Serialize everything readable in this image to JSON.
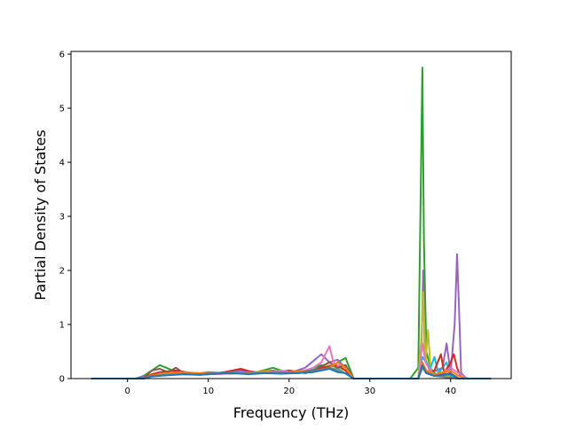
{
  "chart_data": {
    "type": "line",
    "title": "",
    "xlabel": "Frequency (THz)",
    "ylabel": "Partial Density of States",
    "xlim": [
      -7,
      47.5
    ],
    "ylim": [
      0,
      6.05
    ],
    "xticks": [
      0,
      10,
      20,
      30,
      40
    ],
    "yticks": [
      0,
      1,
      2,
      3,
      4,
      5,
      6
    ],
    "grid": false,
    "legend": "none",
    "series": [
      {
        "color": "#2ca02c",
        "points": [
          [
            -4.5,
            0
          ],
          [
            1,
            0
          ],
          [
            2,
            0.05
          ],
          [
            3,
            0.15
          ],
          [
            4,
            0.25
          ],
          [
            4.8,
            0.2
          ],
          [
            6,
            0.12
          ],
          [
            8,
            0.1
          ],
          [
            10,
            0.08
          ],
          [
            12,
            0.1
          ],
          [
            14,
            0.15
          ],
          [
            16,
            0.12
          ],
          [
            18,
            0.2
          ],
          [
            20,
            0.1
          ],
          [
            22,
            0.15
          ],
          [
            24,
            0.25
          ],
          [
            25,
            0.2
          ],
          [
            26,
            0.3
          ],
          [
            27,
            0.38
          ],
          [
            28,
            0
          ],
          [
            35,
            0
          ],
          [
            36,
            0.2
          ],
          [
            36.3,
            3.5
          ],
          [
            36.5,
            5.75
          ],
          [
            36.7,
            2.5
          ],
          [
            37,
            0.5
          ],
          [
            37.5,
            0.2
          ],
          [
            38,
            0.1
          ],
          [
            39,
            0.05
          ],
          [
            40,
            0.02
          ],
          [
            41,
            0
          ],
          [
            45,
            0
          ]
        ]
      },
      {
        "color": "#9467bd",
        "points": [
          [
            -4.5,
            0
          ],
          [
            1,
            0
          ],
          [
            2,
            0.04
          ],
          [
            4,
            0.08
          ],
          [
            6,
            0.1
          ],
          [
            8,
            0.08
          ],
          [
            10,
            0.12
          ],
          [
            12,
            0.1
          ],
          [
            14,
            0.15
          ],
          [
            16,
            0.12
          ],
          [
            18,
            0.15
          ],
          [
            20,
            0.1
          ],
          [
            22,
            0.2
          ],
          [
            24,
            0.45
          ],
          [
            25,
            0.3
          ],
          [
            26,
            0.35
          ],
          [
            27,
            0.2
          ],
          [
            28,
            0
          ],
          [
            36,
            0
          ],
          [
            36.4,
            0.6
          ],
          [
            36.6,
            2.0
          ],
          [
            36.8,
            0.4
          ],
          [
            37.5,
            0.1
          ],
          [
            39,
            0.2
          ],
          [
            39.5,
            0.65
          ],
          [
            40,
            0.1
          ],
          [
            40.5,
            1.0
          ],
          [
            40.8,
            2.3
          ],
          [
            41.0,
            1.5
          ],
          [
            41.3,
            0.1
          ],
          [
            42,
            0
          ],
          [
            45,
            0
          ]
        ]
      },
      {
        "color": "#bcbd22",
        "points": [
          [
            -4.5,
            0
          ],
          [
            2,
            0
          ],
          [
            3,
            0.06
          ],
          [
            5,
            0.1
          ],
          [
            7,
            0.09
          ],
          [
            9,
            0.07
          ],
          [
            11,
            0.1
          ],
          [
            13,
            0.12
          ],
          [
            15,
            0.1
          ],
          [
            17,
            0.14
          ],
          [
            19,
            0.1
          ],
          [
            21,
            0.12
          ],
          [
            23,
            0.15
          ],
          [
            25,
            0.25
          ],
          [
            26,
            0.2
          ],
          [
            27,
            0.15
          ],
          [
            28,
            0
          ],
          [
            36,
            0
          ],
          [
            36.4,
            0.8
          ],
          [
            36.6,
            1.6
          ],
          [
            36.9,
            0.3
          ],
          [
            37.2,
            0.9
          ],
          [
            37.5,
            0.2
          ],
          [
            38,
            0.05
          ],
          [
            40,
            0.05
          ],
          [
            41,
            0
          ],
          [
            45,
            0
          ]
        ]
      },
      {
        "color": "#17becf",
        "points": [
          [
            -4.5,
            0
          ],
          [
            2,
            0
          ],
          [
            3,
            0.05
          ],
          [
            6,
            0.08
          ],
          [
            9,
            0.07
          ],
          [
            12,
            0.1
          ],
          [
            15,
            0.09
          ],
          [
            18,
            0.12
          ],
          [
            21,
            0.1
          ],
          [
            24,
            0.2
          ],
          [
            26,
            0.18
          ],
          [
            28,
            0
          ],
          [
            36,
            0
          ],
          [
            36.5,
            0.4
          ],
          [
            37,
            0.3
          ],
          [
            37.5,
            0.2
          ],
          [
            38,
            0.4
          ],
          [
            38.5,
            0.1
          ],
          [
            39.5,
            0.3
          ],
          [
            40,
            0.05
          ],
          [
            41,
            0
          ],
          [
            45,
            0
          ]
        ]
      },
      {
        "color": "#d62728",
        "points": [
          [
            -4.5,
            0
          ],
          [
            2,
            0
          ],
          [
            3,
            0.08
          ],
          [
            4,
            0.12
          ],
          [
            6,
            0.15
          ],
          [
            8,
            0.1
          ],
          [
            10,
            0.08
          ],
          [
            12,
            0.12
          ],
          [
            14,
            0.18
          ],
          [
            16,
            0.1
          ],
          [
            18,
            0.12
          ],
          [
            20,
            0.15
          ],
          [
            22,
            0.1
          ],
          [
            24,
            0.2
          ],
          [
            26,
            0.25
          ],
          [
            27,
            0.15
          ],
          [
            28,
            0
          ],
          [
            36,
            0
          ],
          [
            36.5,
            0.3
          ],
          [
            37,
            0.1
          ],
          [
            38,
            0.15
          ],
          [
            38.8,
            0.45
          ],
          [
            39.2,
            0.1
          ],
          [
            40,
            0.3
          ],
          [
            40.4,
            0.45
          ],
          [
            40.8,
            0.2
          ],
          [
            41.2,
            0.05
          ],
          [
            42,
            0
          ],
          [
            45,
            0
          ]
        ]
      },
      {
        "color": "#e377c2",
        "points": [
          [
            -4.5,
            0
          ],
          [
            2,
            0
          ],
          [
            3,
            0.05
          ],
          [
            5,
            0.08
          ],
          [
            7,
            0.1
          ],
          [
            9,
            0.09
          ],
          [
            11,
            0.08
          ],
          [
            13,
            0.1
          ],
          [
            15,
            0.12
          ],
          [
            17,
            0.1
          ],
          [
            19,
            0.15
          ],
          [
            21,
            0.1
          ],
          [
            23,
            0.2
          ],
          [
            24,
            0.3
          ],
          [
            25,
            0.6
          ],
          [
            25.5,
            0.3
          ],
          [
            26,
            0.25
          ],
          [
            27,
            0.2
          ],
          [
            28,
            0
          ],
          [
            36,
            0
          ],
          [
            36.5,
            0.65
          ],
          [
            36.9,
            0.3
          ],
          [
            37.5,
            0.15
          ],
          [
            38,
            0.05
          ],
          [
            39,
            0.1
          ],
          [
            40,
            0.2
          ],
          [
            41,
            0.1
          ],
          [
            42,
            0
          ],
          [
            45,
            0
          ]
        ]
      },
      {
        "color": "#8c564b",
        "points": [
          [
            -4.5,
            0
          ],
          [
            2,
            0
          ],
          [
            3,
            0.15
          ],
          [
            4,
            0.18
          ],
          [
            5,
            0.12
          ],
          [
            6,
            0.2
          ],
          [
            7,
            0.1
          ],
          [
            9,
            0.08
          ],
          [
            11,
            0.1
          ],
          [
            13,
            0.12
          ],
          [
            15,
            0.1
          ],
          [
            17,
            0.12
          ],
          [
            19,
            0.1
          ],
          [
            21,
            0.12
          ],
          [
            23,
            0.15
          ],
          [
            25,
            0.3
          ],
          [
            26,
            0.2
          ],
          [
            27,
            0.25
          ],
          [
            28,
            0
          ],
          [
            36,
            0
          ],
          [
            36.5,
            0.2
          ],
          [
            37,
            0.1
          ],
          [
            38,
            0.05
          ],
          [
            40,
            0.1
          ],
          [
            41,
            0
          ],
          [
            45,
            0
          ]
        ]
      },
      {
        "color": "#ff7f0e",
        "points": [
          [
            -4.5,
            0
          ],
          [
            2,
            0
          ],
          [
            3,
            0.06
          ],
          [
            5,
            0.1
          ],
          [
            7,
            0.12
          ],
          [
            9,
            0.1
          ],
          [
            11,
            0.09
          ],
          [
            13,
            0.11
          ],
          [
            15,
            0.1
          ],
          [
            17,
            0.13
          ],
          [
            19,
            0.11
          ],
          [
            21,
            0.13
          ],
          [
            23,
            0.12
          ],
          [
            25,
            0.2
          ],
          [
            26,
            0.3
          ],
          [
            27,
            0.2
          ],
          [
            28,
            0
          ],
          [
            36,
            0
          ],
          [
            36.5,
            0.3
          ],
          [
            37,
            0.15
          ],
          [
            38,
            0.08
          ],
          [
            40,
            0.15
          ],
          [
            41,
            0.05
          ],
          [
            42,
            0
          ],
          [
            45,
            0
          ]
        ]
      },
      {
        "color": "#7f7f7f",
        "points": [
          [
            -4.5,
            0
          ],
          [
            2,
            0
          ],
          [
            3,
            0.05
          ],
          [
            5,
            0.07
          ],
          [
            7,
            0.09
          ],
          [
            9,
            0.08
          ],
          [
            11,
            0.1
          ],
          [
            13,
            0.09
          ],
          [
            15,
            0.11
          ],
          [
            17,
            0.1
          ],
          [
            19,
            0.12
          ],
          [
            21,
            0.1
          ],
          [
            23,
            0.14
          ],
          [
            25,
            0.2
          ],
          [
            26,
            0.15
          ],
          [
            27,
            0.1
          ],
          [
            28,
            0
          ],
          [
            36,
            0
          ],
          [
            36.5,
            0.2
          ],
          [
            37,
            0.1
          ],
          [
            38,
            0.05
          ],
          [
            41,
            0
          ],
          [
            45,
            0
          ]
        ]
      },
      {
        "color": "#1f77b4",
        "points": [
          [
            -4.5,
            0
          ],
          [
            2,
            0
          ],
          [
            3,
            0.04
          ],
          [
            5,
            0.06
          ],
          [
            7,
            0.08
          ],
          [
            9,
            0.07
          ],
          [
            11,
            0.09
          ],
          [
            13,
            0.1
          ],
          [
            15,
            0.08
          ],
          [
            17,
            0.1
          ],
          [
            19,
            0.09
          ],
          [
            21,
            0.1
          ],
          [
            23,
            0.12
          ],
          [
            25,
            0.18
          ],
          [
            26,
            0.12
          ],
          [
            27,
            0.1
          ],
          [
            28,
            0
          ],
          [
            36,
            0
          ],
          [
            36.5,
            0.25
          ],
          [
            37,
            0.1
          ],
          [
            38,
            0.05
          ],
          [
            40,
            0.08
          ],
          [
            41,
            0
          ],
          [
            45,
            0
          ]
        ]
      }
    ]
  }
}
